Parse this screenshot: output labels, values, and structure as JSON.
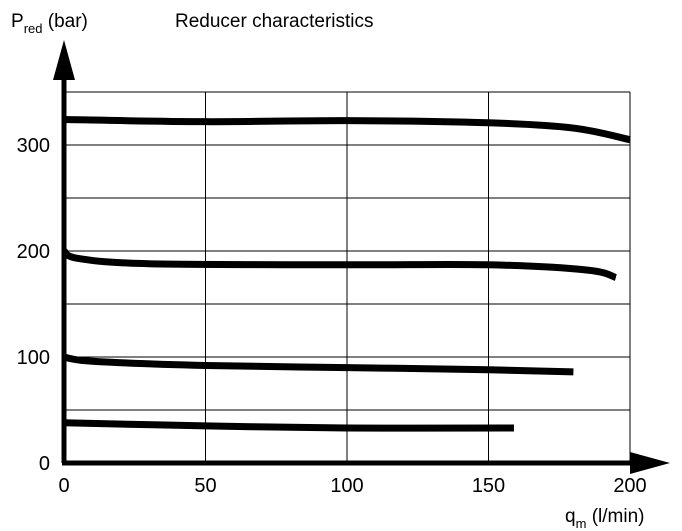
{
  "chart_data": {
    "type": "line",
    "title": "Reducer characteristics",
    "ylabel": {
      "main": "P",
      "sub": "red",
      "unit": " (bar)"
    },
    "xlabel": {
      "main": "q",
      "sub": "m",
      "unit": " (l/min)"
    },
    "xlim": [
      0,
      200
    ],
    "ylim": [
      0,
      300
    ],
    "x_ticks": [
      0,
      50,
      100,
      150,
      200
    ],
    "x_tick_labels": [
      "0",
      "50",
      "100",
      "150",
      "200"
    ],
    "y_ticks": [
      0,
      100,
      200,
      300
    ],
    "y_tick_labels": [
      "0",
      "100",
      "200",
      "300"
    ],
    "grid": true,
    "series": [
      {
        "x": [
          0,
          50,
          100,
          150,
          180,
          200
        ],
        "y": [
          324,
          322,
          323,
          321,
          316,
          305
        ]
      },
      {
        "x": [
          0,
          5,
          30,
          100,
          150,
          185,
          195
        ],
        "y": [
          200,
          193,
          188,
          187,
          187,
          182,
          175
        ]
      },
      {
        "x": [
          0,
          10,
          50,
          100,
          150,
          180
        ],
        "y": [
          100,
          96,
          92,
          90,
          88,
          86
        ]
      },
      {
        "x": [
          0,
          50,
          100,
          159
        ],
        "y": [
          38,
          35,
          33,
          33
        ]
      }
    ],
    "line_color": "#000000"
  }
}
